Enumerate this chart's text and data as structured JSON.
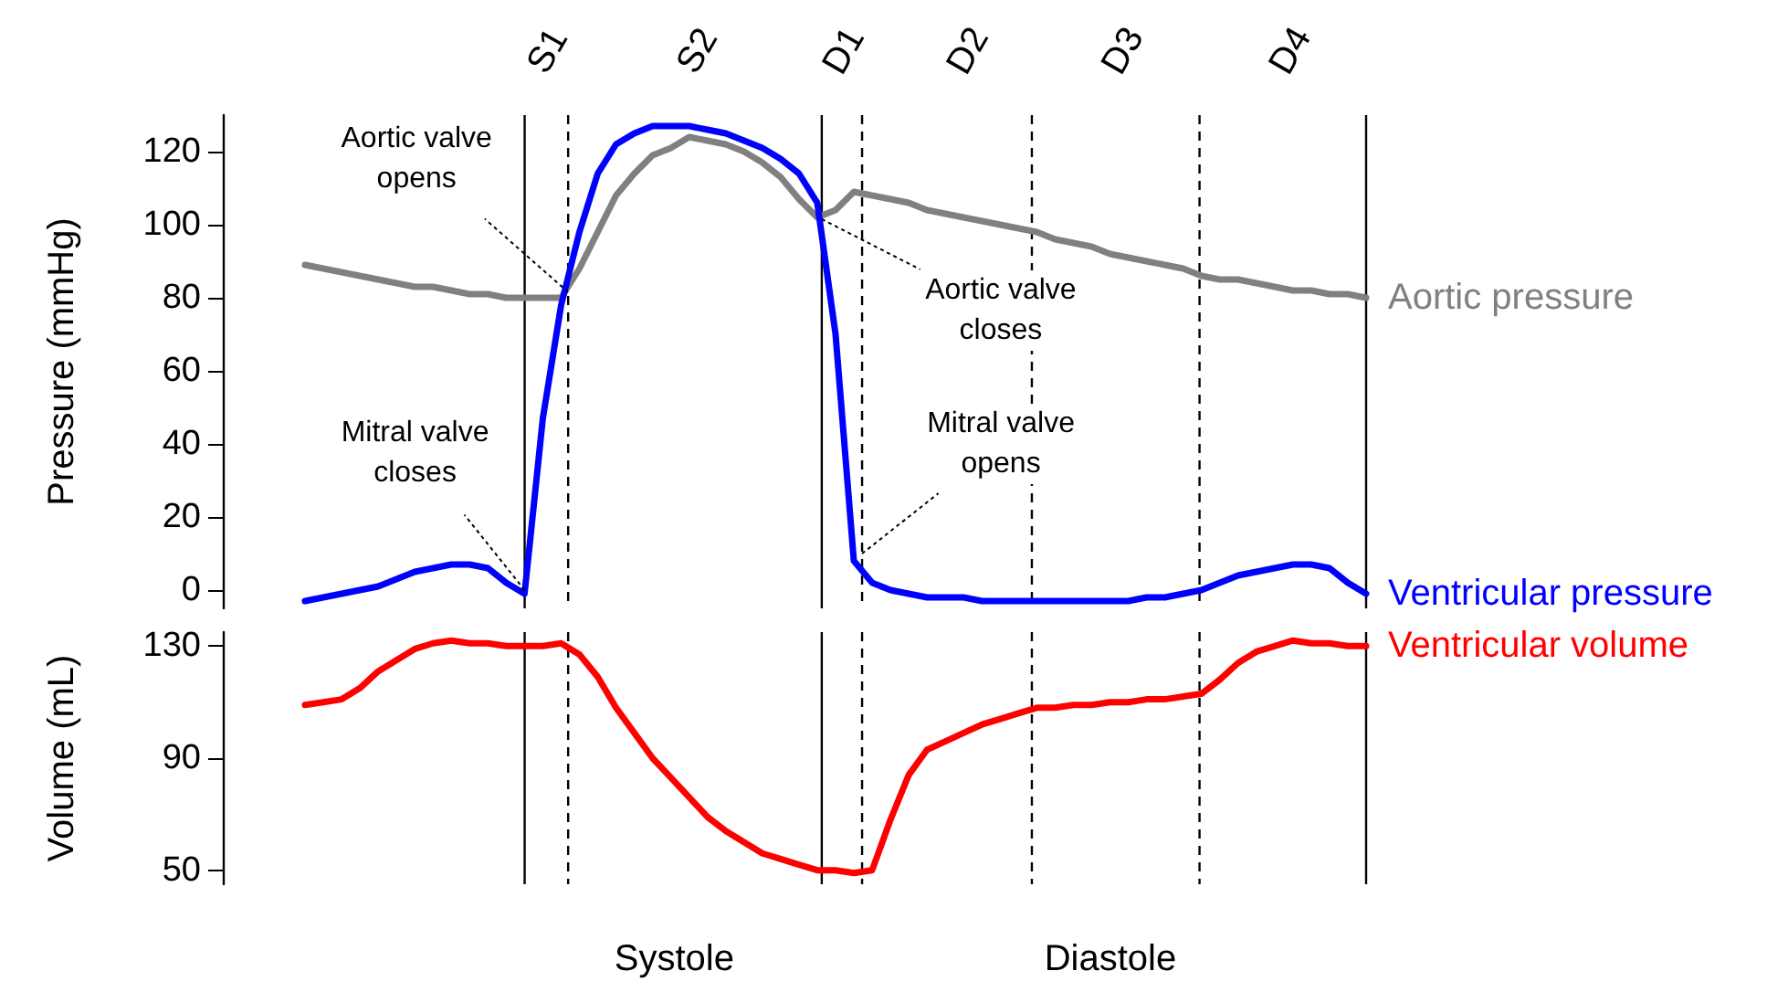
{
  "chart_data": [
    {
      "type": "line",
      "ylabel": "Pressure (mmHg)",
      "grid": "x",
      "ylim": [
        -5,
        130
      ],
      "yticks": [
        0,
        20,
        40,
        60,
        80,
        100,
        120
      ],
      "tick_labels": "y",
      "categories": [
        null,
        null,
        null,
        null,
        null,
        null,
        null,
        null,
        null,
        null,
        null,
        null,
        null,
        null,
        null,
        null,
        null,
        null,
        null,
        null,
        null,
        null,
        null,
        null,
        null,
        null,
        null,
        null,
        null,
        null,
        null,
        null,
        null,
        null,
        null,
        null,
        null,
        null,
        null,
        null,
        null,
        null,
        null,
        null,
        null,
        null,
        null,
        null,
        null,
        null,
        null,
        null,
        null,
        null,
        null,
        null,
        null,
        null,
        null
      ],
      "series": [
        {
          "name": "Aortic pressure",
          "color": "#808080",
          "values": [
            89,
            88,
            87,
            86,
            85,
            84,
            83,
            83,
            82,
            81,
            81,
            80,
            80,
            80,
            80,
            88,
            98,
            108,
            114,
            119,
            121,
            124,
            123,
            122,
            120,
            117,
            113,
            107,
            102,
            104,
            109,
            108,
            107,
            106,
            104,
            103,
            102,
            101,
            100,
            99,
            98,
            96,
            95,
            94,
            92,
            91,
            90,
            89,
            88,
            86,
            85,
            85,
            84,
            83,
            82,
            82,
            81,
            81,
            80
          ]
        },
        {
          "name": "Ventricular pressure",
          "color": "#0000ff",
          "values": [
            -3,
            -2,
            -1,
            0,
            1,
            3,
            5,
            6,
            7,
            7,
            6,
            2,
            -1,
            47,
            78,
            98,
            114,
            122,
            125,
            127,
            127,
            127,
            126,
            125,
            123,
            121,
            118,
            114,
            106,
            70,
            8,
            2,
            0,
            -1,
            -2,
            -2,
            -2,
            -3,
            -3,
            -3,
            -3,
            -3,
            -3,
            -3,
            -3,
            -3,
            -2,
            -2,
            -1,
            0,
            2,
            4,
            5,
            6,
            7,
            7,
            6,
            2,
            -1
          ]
        }
      ],
      "annotations": [
        "S1",
        "S2",
        "D1",
        "D2",
        "D3",
        "D4",
        "Aortic valve opens",
        "Mitral valve closes",
        "Aortic valve closes",
        "Mitral valve opens"
      ]
    },
    {
      "type": "line",
      "ylabel": "Volume (mL)",
      "grid": "x",
      "ylim": [
        45,
        135
      ],
      "yticks": [
        50,
        90,
        130
      ],
      "tick_labels": "y",
      "categories": [
        null,
        null,
        null,
        null,
        null,
        null,
        null,
        null,
        null,
        null,
        null,
        null,
        null,
        null,
        null,
        null,
        null,
        null,
        null,
        null,
        null,
        null,
        null,
        null,
        null,
        null,
        null,
        null,
        null,
        null,
        null,
        null,
        null,
        null,
        null,
        null,
        null,
        null,
        null,
        null,
        null,
        null,
        null,
        null,
        null,
        null,
        null,
        null,
        null,
        null,
        null,
        null,
        null,
        null,
        null,
        null,
        null,
        null,
        null
      ],
      "series": [
        {
          "name": "Ventricular volume",
          "color": "#ff0000",
          "values": [
            109,
            110,
            111,
            115,
            121,
            125,
            129,
            131,
            132,
            131,
            131,
            130,
            130,
            130,
            131,
            127,
            119,
            108,
            99,
            90,
            83,
            76,
            69,
            64,
            60,
            56,
            54,
            52,
            50,
            50,
            49,
            50,
            68,
            84,
            93,
            96,
            99,
            102,
            104,
            106,
            108,
            108,
            109,
            109,
            110,
            110,
            111,
            111,
            112,
            113,
            118,
            124,
            128,
            130,
            132,
            131,
            131,
            130,
            130
          ]
        }
      ],
      "annotations": [
        "Systole",
        "Diastole"
      ]
    }
  ]
}
